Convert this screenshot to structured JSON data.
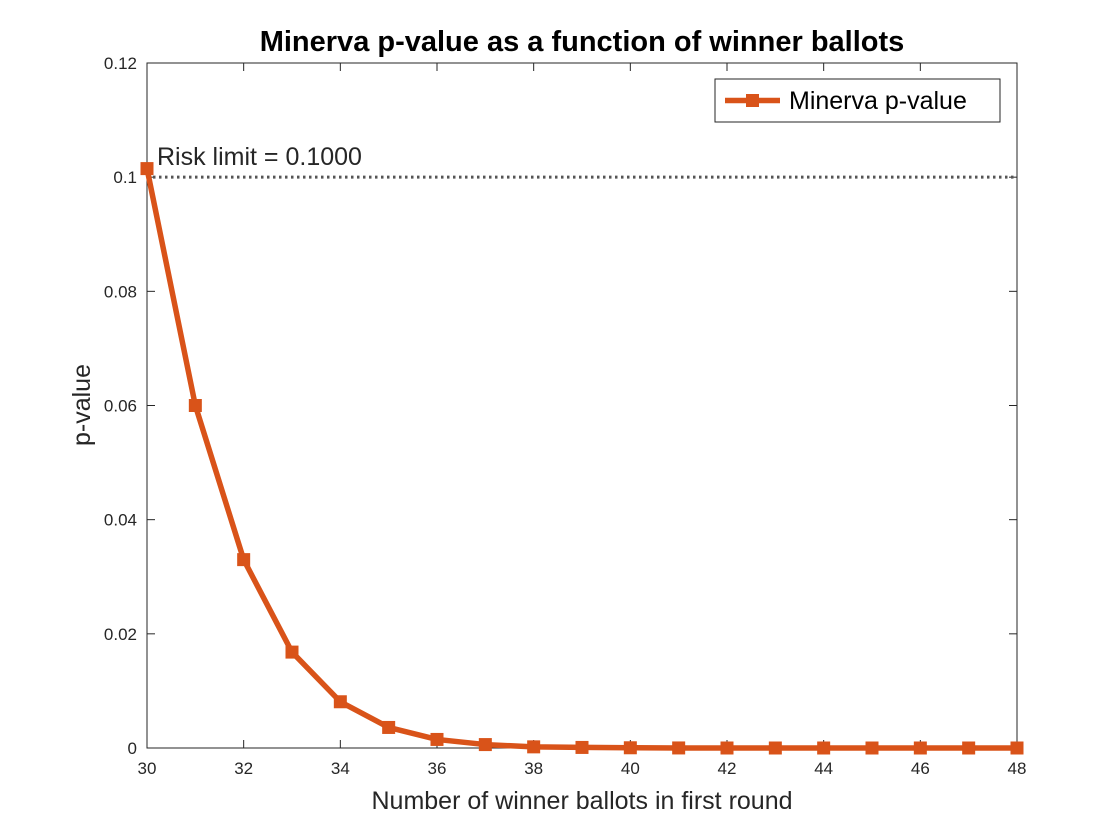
{
  "chart_data": {
    "type": "line",
    "title": "Minerva p-value as a function of winner ballots",
    "xlabel": "Number of winner ballots in first round",
    "ylabel": "p-value",
    "xlim": [
      30,
      48
    ],
    "ylim": [
      0,
      0.12
    ],
    "x_ticks": [
      30,
      32,
      34,
      36,
      38,
      40,
      42,
      44,
      46,
      48
    ],
    "x_tick_labels": [
      "30",
      "32",
      "34",
      "36",
      "38",
      "40",
      "42",
      "44",
      "46",
      "48"
    ],
    "y_ticks": [
      0,
      0.02,
      0.04,
      0.06,
      0.08,
      0.1,
      0.12
    ],
    "y_tick_labels": [
      "0",
      "0.02",
      "0.04",
      "0.06",
      "0.08",
      "0.1",
      "0.12"
    ],
    "grid": false,
    "legend_position": "top-right",
    "series": [
      {
        "name": "Minerva p-value",
        "color": "#D95319",
        "marker": "square",
        "x": [
          30,
          31,
          32,
          33,
          34,
          35,
          36,
          37,
          38,
          39,
          40,
          41,
          42,
          43,
          44,
          45,
          46,
          47,
          48
        ],
        "y": [
          0.1015,
          0.06,
          0.033,
          0.0168,
          0.0081,
          0.0036,
          0.0015,
          0.0006,
          0.0002,
          0.0001,
          4e-05,
          1e-05,
          0,
          0,
          0,
          0,
          0,
          0,
          0
        ]
      }
    ],
    "reference_line": {
      "y": 0.1,
      "style": "dotted",
      "color": "#555555",
      "label": "Risk limit = 0.1000"
    }
  }
}
